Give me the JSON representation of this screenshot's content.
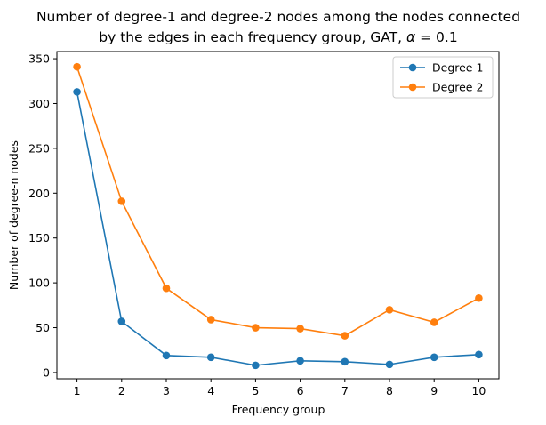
{
  "chart_data": {
    "type": "line",
    "title_line1": "Number of degree-1 and degree-2 nodes among the nodes connected",
    "title_line2_prefix": "by the edges in each frequency group, GAT, ",
    "title_alpha_symbol": "α",
    "title_alpha_value": " = 0.1",
    "xlabel": "Frequency group",
    "ylabel": "Number of degree-n nodes",
    "x": [
      1,
      2,
      3,
      4,
      5,
      6,
      7,
      8,
      9,
      10
    ],
    "x_ticks": [
      "1",
      "2",
      "3",
      "4",
      "5",
      "6",
      "7",
      "8",
      "9",
      "10"
    ],
    "y_ticks": [
      "0",
      "50",
      "100",
      "150",
      "200",
      "250",
      "300",
      "350"
    ],
    "y_tick_values": [
      0,
      50,
      100,
      150,
      200,
      250,
      300,
      350
    ],
    "xlim": [
      0.55,
      10.45
    ],
    "ylim": [
      -7,
      358
    ],
    "grid": false,
    "legend_position": "upper right",
    "series": [
      {
        "name": "Degree 1",
        "color": "#1f77b4",
        "values": [
          313,
          57,
          19,
          17,
          8,
          13,
          12,
          9,
          17,
          20
        ]
      },
      {
        "name": "Degree 2",
        "color": "#ff7f0e",
        "values": [
          341,
          191,
          94,
          59,
          50,
          49,
          41,
          70,
          56,
          83
        ]
      }
    ]
  }
}
